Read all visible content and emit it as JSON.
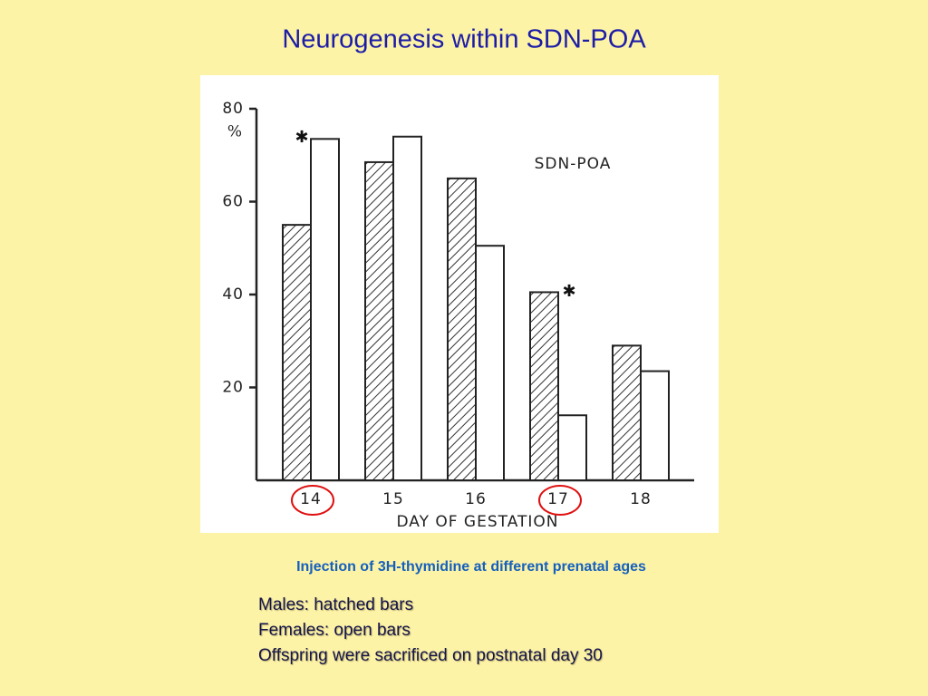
{
  "chart_data": {
    "type": "bar",
    "title": "Neurogenesis within SDN-POA",
    "y_label": "%",
    "inset_label": "SDN-POA",
    "x_label": "DAY OF GESTATION",
    "categories": [
      "14",
      "15",
      "16",
      "17",
      "18"
    ],
    "series": [
      {
        "fill": "hatched",
        "color": "#222222",
        "values": [
          55,
          68.5,
          65,
          40.5,
          29
        ]
      },
      {
        "fill": "open",
        "color": "#222222",
        "values": [
          73.5,
          74,
          50.5,
          14,
          23.5
        ]
      }
    ],
    "significance_markers": [
      "✱",
      "✱"
    ],
    "ylim": [
      0,
      80
    ],
    "yticks": [
      20,
      40,
      60,
      80
    ]
  },
  "caption": "Injection of 3H-thymidine at different prenatal ages",
  "notes": [
    "Males: hatched bars",
    "Females: open bars",
    "Offspring were sacrificed on postnatal day 30"
  ]
}
